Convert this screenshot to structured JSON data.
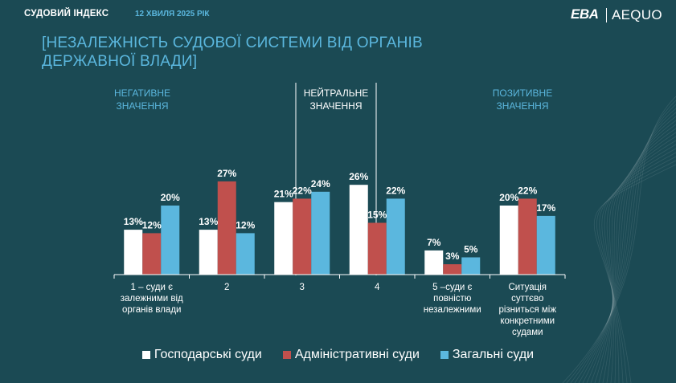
{
  "header": {
    "title": "СУДОВИЙ ІНДЕКС",
    "date": "12 ХВИЛЯ 2025 РІК",
    "logo_left": "EBA",
    "logo_right": "AEQUO"
  },
  "main_title": "[НЕЗАЛЕЖНІСТЬ СУДОВОЇ СИСТЕМИ ВІД ОРГАНІВ ДЕРЖАВНОЇ ВЛАДИ]",
  "zones": {
    "negative": "НЕГАТИВНЕ ЗНАЧЕННЯ",
    "neutral": "НЕЙТРАЛЬНЕ ЗНАЧЕННЯ",
    "positive": "ПОЗИТИВНЕ ЗНАЧЕННЯ"
  },
  "colors": {
    "background": "#1b4a54",
    "accent": "#5bb7de",
    "series_economic": "#ffffff",
    "series_administrative": "#c0504d",
    "series_general": "#5bb7de"
  },
  "chart_data": {
    "type": "bar",
    "title": "",
    "xlabel": "",
    "ylabel": "",
    "ylim": [
      0,
      30
    ],
    "value_suffix": "%",
    "categories": [
      [
        "1 – суди є",
        "залежними від",
        "органів влади"
      ],
      [
        "2"
      ],
      [
        "3"
      ],
      [
        "4"
      ],
      [
        "5 –суди є",
        "повністю",
        "незалежними"
      ],
      [
        "Ситуація",
        "суттєво",
        "різниться між",
        "конкретними",
        "судами"
      ]
    ],
    "series": [
      {
        "name": "Господарські суди",
        "color": "#ffffff",
        "values": [
          13,
          13,
          21,
          26,
          7,
          20
        ]
      },
      {
        "name": "Адміністративні суди",
        "color": "#c0504d",
        "values": [
          12,
          27,
          22,
          15,
          3,
          22
        ]
      },
      {
        "name": "Загальні суди",
        "color": "#5bb7de",
        "values": [
          20,
          12,
          24,
          22,
          5,
          17
        ]
      }
    ],
    "legend_position": "bottom"
  }
}
